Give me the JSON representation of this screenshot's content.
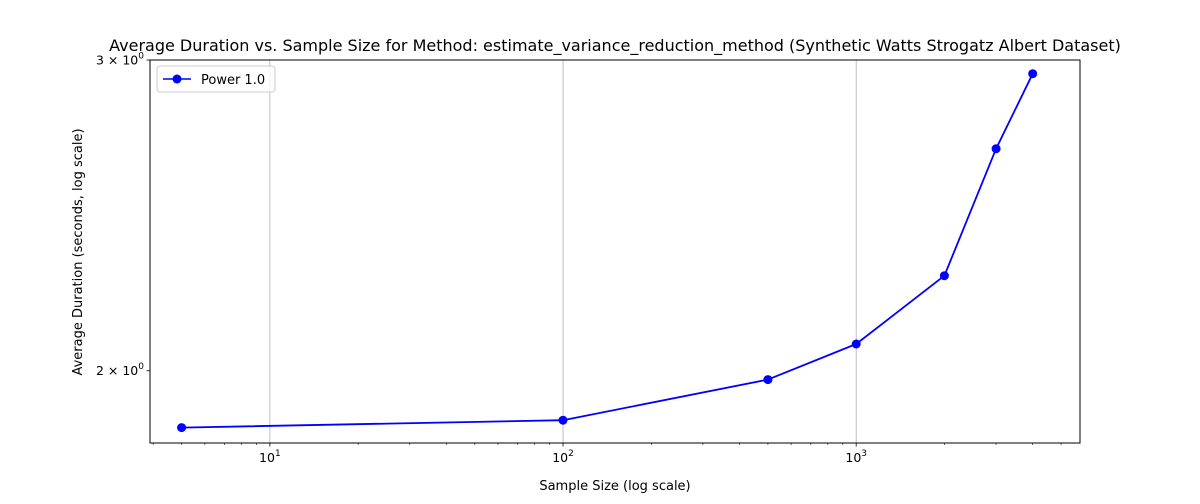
{
  "chart_data": {
    "type": "line",
    "title": "Average Duration vs. Sample Size for Method: estimate_variance_reduction_method (Synthetic Watts Strogatz Albert Dataset)",
    "xlabel": "Sample Size (log scale)",
    "ylabel": "Average Duration (seconds, log scale)",
    "xscale": "log",
    "yscale": "log",
    "xlim": [
      3.9,
      5800
    ],
    "ylim": [
      1.82,
      3.0
    ],
    "x_ticks": [
      {
        "value": 10,
        "base": "10",
        "exp": "1"
      },
      {
        "value": 100,
        "base": "10",
        "exp": "2"
      },
      {
        "value": 1000,
        "base": "10",
        "exp": "3"
      }
    ],
    "y_ticks": [
      {
        "value": 2,
        "base": "2 × 10",
        "exp": "0"
      },
      {
        "value": 3,
        "base": "3 × 10",
        "exp": "0"
      }
    ],
    "grid": "x-major",
    "legend_position": "top-left",
    "series": [
      {
        "name": "Power 1.0",
        "color": "#0000ff",
        "marker": "circle",
        "x": [
          5,
          100,
          500,
          1000,
          2000,
          3000,
          4000
        ],
        "y": [
          1.857,
          1.875,
          1.977,
          2.071,
          2.264,
          2.672,
          2.947
        ]
      }
    ]
  }
}
